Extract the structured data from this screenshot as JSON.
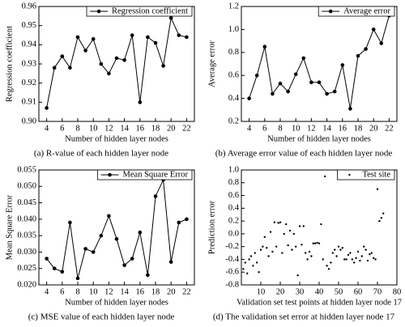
{
  "chart_data": [
    {
      "type": "line",
      "caption": "(a) R-value of each hidden layer node",
      "x_label": "Number of hidden layer nodes",
      "y_label": "Regression coefficient",
      "legend": "upper right",
      "x": [
        4,
        5,
        6,
        7,
        8,
        9,
        10,
        11,
        12,
        13,
        14,
        15,
        16,
        17,
        18,
        19,
        20,
        21,
        22
      ],
      "series": [
        {
          "name": "Regression coefficient",
          "color": "#000000",
          "values": [
            0.907,
            0.928,
            0.934,
            0.928,
            0.944,
            0.937,
            0.943,
            0.93,
            0.925,
            0.933,
            0.932,
            0.945,
            0.91,
            0.944,
            0.941,
            0.929,
            0.954,
            0.945,
            0.944
          ]
        }
      ],
      "xlim": [
        3,
        23
      ],
      "xticks": [
        4,
        6,
        8,
        10,
        12,
        14,
        16,
        18,
        20,
        22
      ],
      "ylim": [
        0.9,
        0.96
      ],
      "yticks": [
        {
          "value": 0.9,
          "label": "0.90"
        },
        0.91,
        0.92,
        0.93,
        0.94,
        0.95,
        0.96
      ]
    },
    {
      "type": "line",
      "caption": "(b) Average error value of each hidden layer node",
      "x_label": "Number of hidden layer nodes",
      "y_label": "Average error",
      "legend": "upper right",
      "x": [
        4,
        5,
        6,
        7,
        8,
        9,
        10,
        11,
        12,
        13,
        14,
        15,
        16,
        17,
        18,
        19,
        20,
        21,
        22
      ],
      "series": [
        {
          "name": "Average error",
          "color": "#000000",
          "values": [
            0.4,
            0.6,
            0.85,
            0.44,
            0.53,
            0.46,
            0.61,
            0.75,
            0.54,
            0.54,
            0.44,
            0.46,
            0.69,
            0.31,
            0.77,
            0.83,
            1.0,
            0.88,
            1.12
          ]
        }
      ],
      "xlim": [
        3,
        23
      ],
      "xticks": [
        4,
        6,
        8,
        10,
        12,
        14,
        16,
        18,
        20,
        22
      ],
      "ylim": [
        0.2,
        1.2
      ],
      "yticks": [
        0.2,
        0.4,
        0.6,
        0.8,
        {
          "value": 1.0,
          "label": "1.0"
        },
        1.2
      ]
    },
    {
      "type": "line",
      "caption": "(c) MSE value of each hidden layer node",
      "x_label": "Number of hidden layer nodes",
      "y_label": "Mean Square Error",
      "legend": "upper right",
      "x": [
        4,
        5,
        6,
        7,
        8,
        9,
        10,
        11,
        12,
        13,
        14,
        15,
        16,
        17,
        18,
        19,
        20,
        21,
        22
      ],
      "series": [
        {
          "name": "Mean Square Error",
          "color": "#000000",
          "values": [
            0.028,
            0.025,
            0.024,
            0.039,
            0.022,
            0.031,
            0.03,
            0.035,
            0.041,
            0.034,
            0.026,
            0.028,
            0.036,
            0.023,
            0.047,
            0.052,
            0.027,
            0.039,
            0.04
          ]
        }
      ],
      "xlim": [
        3,
        23
      ],
      "xticks": [
        4,
        6,
        8,
        10,
        12,
        14,
        16,
        18,
        20,
        22
      ],
      "ylim": [
        0.02,
        0.055
      ],
      "yticks": [
        {
          "value": 0.02,
          "label": "0.020"
        },
        0.025,
        {
          "value": 0.03,
          "label": "0.030"
        },
        0.035,
        {
          "value": 0.04,
          "label": "0.040"
        },
        0.045,
        {
          "value": 0.05,
          "label": "0.050"
        },
        0.055
      ]
    },
    {
      "type": "scatter",
      "caption": "(d) The validation set error at hidden layer node 17",
      "x_label": "Validation set test points at hidden layer node 17",
      "y_label": "Prediction error",
      "legend": "upper right",
      "x": [
        1,
        2,
        3,
        4,
        5,
        6,
        7,
        8,
        9,
        10,
        11,
        12,
        13,
        14,
        15,
        16,
        17,
        18,
        19,
        20,
        21,
        22,
        23,
        24,
        25,
        26,
        27,
        28,
        29,
        30,
        31,
        32,
        33,
        34,
        35,
        36,
        37,
        38,
        39,
        40,
        41,
        42,
        43,
        44,
        45,
        46,
        47,
        48,
        49,
        50,
        51,
        52,
        53,
        54,
        55,
        56,
        57,
        58,
        59,
        60,
        61,
        62,
        63,
        64,
        65,
        66,
        67,
        68,
        69,
        70,
        71,
        72,
        73
      ],
      "series": [
        {
          "name": "Test site",
          "color": "#000000",
          "values": [
            -0.55,
            -0.45,
            -0.62,
            -0.4,
            -0.35,
            -0.5,
            -0.3,
            -0.45,
            -0.6,
            -0.25,
            -0.2,
            -0.05,
            -0.22,
            -0.35,
            0.03,
            -0.28,
            0.18,
            -0.2,
            0.17,
            0.18,
            -0.3,
            0.0,
            0.15,
            -0.18,
            0.05,
            -0.25,
            0.0,
            -0.2,
            -0.65,
            0.12,
            -0.17,
            0.12,
            -0.3,
            -0.4,
            -0.28,
            -0.35,
            -0.15,
            -0.15,
            -0.14,
            -0.15,
            0.15,
            -0.4,
            0.9,
            -0.5,
            -0.55,
            -0.45,
            -0.3,
            -0.25,
            -0.35,
            -0.2,
            -0.25,
            -0.22,
            -0.4,
            -0.4,
            -0.33,
            -0.3,
            -0.4,
            -0.45,
            -0.38,
            -0.28,
            -0.42,
            -0.35,
            -0.2,
            -0.25,
            -0.42,
            -0.32,
            -0.3,
            -0.38,
            -0.4,
            0.7,
            0.2,
            0.25,
            0.32
          ]
        }
      ],
      "xlim": [
        0,
        80
      ],
      "xticks": [
        10,
        20,
        30,
        40,
        50,
        60,
        70,
        80
      ],
      "ylim": [
        -0.8,
        1.0
      ],
      "yticks": [
        -0.8,
        -0.6,
        -0.4,
        -0.2,
        {
          "value": 0.0,
          "label": "0.0"
        },
        0.2,
        0.4,
        0.6,
        0.8,
        {
          "value": 1.0,
          "label": "1.0"
        }
      ]
    }
  ]
}
